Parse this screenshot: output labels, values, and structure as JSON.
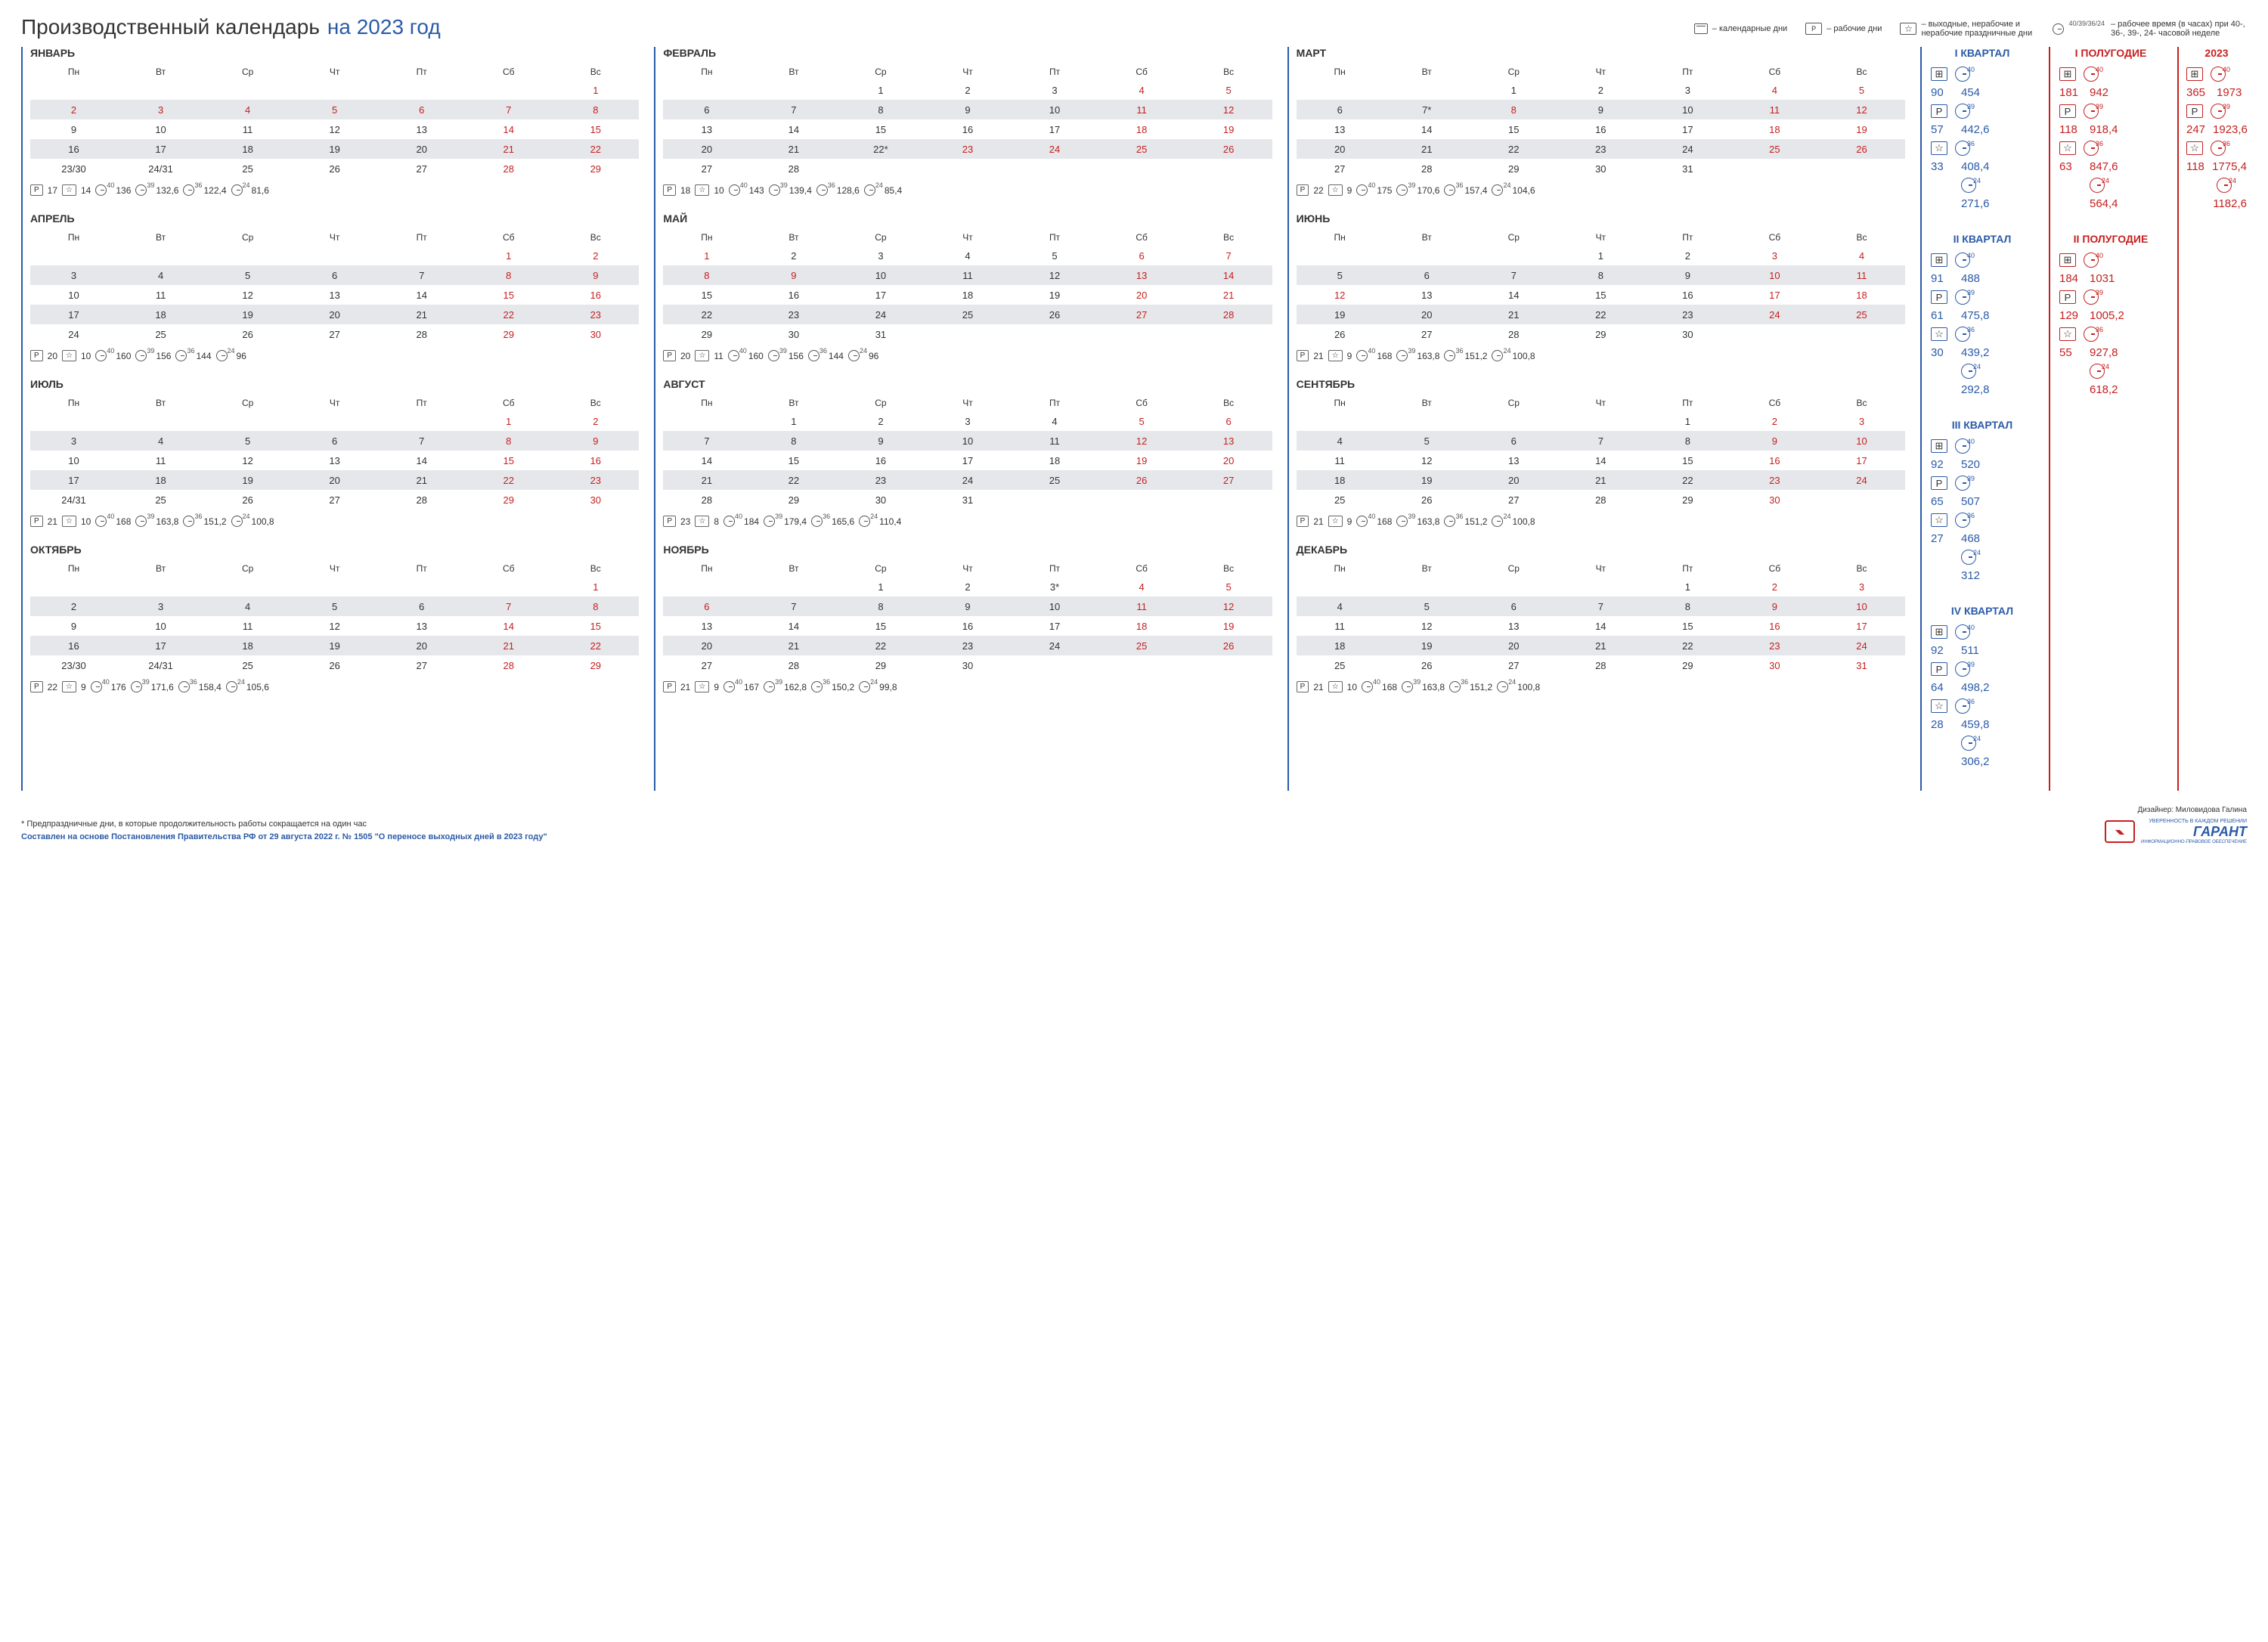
{
  "title": "Производственный календарь",
  "titleYear": "на 2023 год",
  "legend": {
    "cal": "– календарные дни",
    "work": "– рабочие дни",
    "off": "– выходные, нерабочие и нерабочие праздничные дни",
    "time": "– рабочее время (в часах) при 40-, 36-, 39-, 24- часовой неделе",
    "timeLabel": "40/39/36/24"
  },
  "weekdays": [
    "Пн",
    "Вт",
    "Ср",
    "Чт",
    "Пт",
    "Сб",
    "Вс"
  ],
  "months": [
    {
      "name": "ЯНВАРЬ",
      "rows": [
        [
          "",
          "",
          "",
          "",
          "",
          "",
          "1"
        ],
        [
          "2",
          "3",
          "4",
          "5",
          "6",
          "7",
          "8"
        ],
        [
          "9",
          "10",
          "11",
          "12",
          "13",
          "14",
          "15"
        ],
        [
          "16",
          "17",
          "18",
          "19",
          "20",
          "21",
          "22"
        ],
        [
          "23/30",
          "24/31",
          "25",
          "26",
          "27",
          "28",
          "29"
        ]
      ],
      "red": [
        [
          0,
          0,
          0,
          0,
          0,
          0,
          1
        ],
        [
          1,
          1,
          1,
          1,
          1,
          1,
          1
        ],
        [
          0,
          0,
          0,
          0,
          0,
          1,
          1
        ],
        [
          0,
          0,
          0,
          0,
          0,
          1,
          1
        ],
        [
          0,
          0,
          0,
          0,
          0,
          1,
          1
        ]
      ],
      "p": "17",
      "s": "14",
      "h": [
        "136",
        "132,6",
        "122,4",
        "81,6"
      ]
    },
    {
      "name": "ФЕВРАЛЬ",
      "rows": [
        [
          "",
          "",
          "1",
          "2",
          "3",
          "4",
          "5"
        ],
        [
          "6",
          "7",
          "8",
          "9",
          "10",
          "11",
          "12"
        ],
        [
          "13",
          "14",
          "15",
          "16",
          "17",
          "18",
          "19"
        ],
        [
          "20",
          "21",
          "22*",
          "23",
          "24",
          "25",
          "26"
        ],
        [
          "27",
          "28",
          "",
          "",
          "",
          "",
          ""
        ]
      ],
      "red": [
        [
          0,
          0,
          0,
          0,
          0,
          1,
          1
        ],
        [
          0,
          0,
          0,
          0,
          0,
          1,
          1
        ],
        [
          0,
          0,
          0,
          0,
          0,
          1,
          1
        ],
        [
          0,
          0,
          0,
          1,
          1,
          1,
          1
        ],
        [
          0,
          0,
          0,
          0,
          0,
          0,
          0
        ]
      ],
      "p": "18",
      "s": "10",
      "h": [
        "143",
        "139,4",
        "128,6",
        "85,4"
      ]
    },
    {
      "name": "МАРТ",
      "rows": [
        [
          "",
          "",
          "1",
          "2",
          "3",
          "4",
          "5"
        ],
        [
          "6",
          "7*",
          "8",
          "9",
          "10",
          "11",
          "12"
        ],
        [
          "13",
          "14",
          "15",
          "16",
          "17",
          "18",
          "19"
        ],
        [
          "20",
          "21",
          "22",
          "23",
          "24",
          "25",
          "26"
        ],
        [
          "27",
          "28",
          "29",
          "30",
          "31",
          "",
          ""
        ]
      ],
      "red": [
        [
          0,
          0,
          0,
          0,
          0,
          1,
          1
        ],
        [
          0,
          0,
          1,
          0,
          0,
          1,
          1
        ],
        [
          0,
          0,
          0,
          0,
          0,
          1,
          1
        ],
        [
          0,
          0,
          0,
          0,
          0,
          1,
          1
        ],
        [
          0,
          0,
          0,
          0,
          0,
          0,
          0
        ]
      ],
      "p": "22",
      "s": "9",
      "h": [
        "175",
        "170,6",
        "157,4",
        "104,6"
      ]
    },
    {
      "name": "АПРЕЛЬ",
      "rows": [
        [
          "",
          "",
          "",
          "",
          "",
          "1",
          "2"
        ],
        [
          "3",
          "4",
          "5",
          "6",
          "7",
          "8",
          "9"
        ],
        [
          "10",
          "11",
          "12",
          "13",
          "14",
          "15",
          "16"
        ],
        [
          "17",
          "18",
          "19",
          "20",
          "21",
          "22",
          "23"
        ],
        [
          "24",
          "25",
          "26",
          "27",
          "28",
          "29",
          "30"
        ]
      ],
      "red": [
        [
          0,
          0,
          0,
          0,
          0,
          1,
          1
        ],
        [
          0,
          0,
          0,
          0,
          0,
          1,
          1
        ],
        [
          0,
          0,
          0,
          0,
          0,
          1,
          1
        ],
        [
          0,
          0,
          0,
          0,
          0,
          1,
          1
        ],
        [
          0,
          0,
          0,
          0,
          0,
          1,
          1
        ]
      ],
      "p": "20",
      "s": "10",
      "h": [
        "160",
        "156",
        "144",
        "96"
      ]
    },
    {
      "name": "МАЙ",
      "rows": [
        [
          "1",
          "2",
          "3",
          "4",
          "5",
          "6",
          "7"
        ],
        [
          "8",
          "9",
          "10",
          "11",
          "12",
          "13",
          "14"
        ],
        [
          "15",
          "16",
          "17",
          "18",
          "19",
          "20",
          "21"
        ],
        [
          "22",
          "23",
          "24",
          "25",
          "26",
          "27",
          "28"
        ],
        [
          "29",
          "30",
          "31",
          "",
          "",
          "",
          ""
        ]
      ],
      "red": [
        [
          1,
          0,
          0,
          0,
          0,
          1,
          1
        ],
        [
          1,
          1,
          0,
          0,
          0,
          1,
          1
        ],
        [
          0,
          0,
          0,
          0,
          0,
          1,
          1
        ],
        [
          0,
          0,
          0,
          0,
          0,
          1,
          1
        ],
        [
          0,
          0,
          0,
          0,
          0,
          0,
          0
        ]
      ],
      "p": "20",
      "s": "11",
      "h": [
        "160",
        "156",
        "144",
        "96"
      ]
    },
    {
      "name": "ИЮНЬ",
      "rows": [
        [
          "",
          "",
          "",
          "1",
          "2",
          "3",
          "4"
        ],
        [
          "5",
          "6",
          "7",
          "8",
          "9",
          "10",
          "11"
        ],
        [
          "12",
          "13",
          "14",
          "15",
          "16",
          "17",
          "18"
        ],
        [
          "19",
          "20",
          "21",
          "22",
          "23",
          "24",
          "25"
        ],
        [
          "26",
          "27",
          "28",
          "29",
          "30",
          "",
          ""
        ]
      ],
      "red": [
        [
          0,
          0,
          0,
          0,
          0,
          1,
          1
        ],
        [
          0,
          0,
          0,
          0,
          0,
          1,
          1
        ],
        [
          1,
          0,
          0,
          0,
          0,
          1,
          1
        ],
        [
          0,
          0,
          0,
          0,
          0,
          1,
          1
        ],
        [
          0,
          0,
          0,
          0,
          0,
          0,
          0
        ]
      ],
      "p": "21",
      "s": "9",
      "h": [
        "168",
        "163,8",
        "151,2",
        "100,8"
      ]
    },
    {
      "name": "ИЮЛЬ",
      "rows": [
        [
          "",
          "",
          "",
          "",
          "",
          "1",
          "2"
        ],
        [
          "3",
          "4",
          "5",
          "6",
          "7",
          "8",
          "9"
        ],
        [
          "10",
          "11",
          "12",
          "13",
          "14",
          "15",
          "16"
        ],
        [
          "17",
          "18",
          "19",
          "20",
          "21",
          "22",
          "23"
        ],
        [
          "24/31",
          "25",
          "26",
          "27",
          "28",
          "29",
          "30"
        ]
      ],
      "red": [
        [
          0,
          0,
          0,
          0,
          0,
          1,
          1
        ],
        [
          0,
          0,
          0,
          0,
          0,
          1,
          1
        ],
        [
          0,
          0,
          0,
          0,
          0,
          1,
          1
        ],
        [
          0,
          0,
          0,
          0,
          0,
          1,
          1
        ],
        [
          0,
          0,
          0,
          0,
          0,
          1,
          1
        ]
      ],
      "p": "21",
      "s": "10",
      "h": [
        "168",
        "163,8",
        "151,2",
        "100,8"
      ]
    },
    {
      "name": "АВГУСТ",
      "rows": [
        [
          "",
          "1",
          "2",
          "3",
          "4",
          "5",
          "6"
        ],
        [
          "7",
          "8",
          "9",
          "10",
          "11",
          "12",
          "13"
        ],
        [
          "14",
          "15",
          "16",
          "17",
          "18",
          "19",
          "20"
        ],
        [
          "21",
          "22",
          "23",
          "24",
          "25",
          "26",
          "27"
        ],
        [
          "28",
          "29",
          "30",
          "31",
          "",
          "",
          ""
        ]
      ],
      "red": [
        [
          0,
          0,
          0,
          0,
          0,
          1,
          1
        ],
        [
          0,
          0,
          0,
          0,
          0,
          1,
          1
        ],
        [
          0,
          0,
          0,
          0,
          0,
          1,
          1
        ],
        [
          0,
          0,
          0,
          0,
          0,
          1,
          1
        ],
        [
          0,
          0,
          0,
          0,
          0,
          0,
          0
        ]
      ],
      "p": "23",
      "s": "8",
      "h": [
        "184",
        "179,4",
        "165,6",
        "110,4"
      ]
    },
    {
      "name": "СЕНТЯБРЬ",
      "rows": [
        [
          "",
          "",
          "",
          "",
          "1",
          "2",
          "3"
        ],
        [
          "4",
          "5",
          "6",
          "7",
          "8",
          "9",
          "10"
        ],
        [
          "11",
          "12",
          "13",
          "14",
          "15",
          "16",
          "17"
        ],
        [
          "18",
          "19",
          "20",
          "21",
          "22",
          "23",
          "24"
        ],
        [
          "25",
          "26",
          "27",
          "28",
          "29",
          "30",
          ""
        ]
      ],
      "red": [
        [
          0,
          0,
          0,
          0,
          0,
          1,
          1
        ],
        [
          0,
          0,
          0,
          0,
          0,
          1,
          1
        ],
        [
          0,
          0,
          0,
          0,
          0,
          1,
          1
        ],
        [
          0,
          0,
          0,
          0,
          0,
          1,
          1
        ],
        [
          0,
          0,
          0,
          0,
          0,
          1,
          0
        ]
      ],
      "p": "21",
      "s": "9",
      "h": [
        "168",
        "163,8",
        "151,2",
        "100,8"
      ]
    },
    {
      "name": "ОКТЯБРЬ",
      "rows": [
        [
          "",
          "",
          "",
          "",
          "",
          "",
          "1"
        ],
        [
          "2",
          "3",
          "4",
          "5",
          "6",
          "7",
          "8"
        ],
        [
          "9",
          "10",
          "11",
          "12",
          "13",
          "14",
          "15"
        ],
        [
          "16",
          "17",
          "18",
          "19",
          "20",
          "21",
          "22"
        ],
        [
          "23/30",
          "24/31",
          "25",
          "26",
          "27",
          "28",
          "29"
        ]
      ],
      "red": [
        [
          0,
          0,
          0,
          0,
          0,
          0,
          1
        ],
        [
          0,
          0,
          0,
          0,
          0,
          1,
          1
        ],
        [
          0,
          0,
          0,
          0,
          0,
          1,
          1
        ],
        [
          0,
          0,
          0,
          0,
          0,
          1,
          1
        ],
        [
          0,
          0,
          0,
          0,
          0,
          1,
          1
        ]
      ],
      "p": "22",
      "s": "9",
      "h": [
        "176",
        "171,6",
        "158,4",
        "105,6"
      ]
    },
    {
      "name": "НОЯБРЬ",
      "rows": [
        [
          "",
          "",
          "1",
          "2",
          "3*",
          "4",
          "5"
        ],
        [
          "6",
          "7",
          "8",
          "9",
          "10",
          "11",
          "12"
        ],
        [
          "13",
          "14",
          "15",
          "16",
          "17",
          "18",
          "19"
        ],
        [
          "20",
          "21",
          "22",
          "23",
          "24",
          "25",
          "26"
        ],
        [
          "27",
          "28",
          "29",
          "30",
          "",
          "",
          ""
        ]
      ],
      "red": [
        [
          0,
          0,
          0,
          0,
          0,
          1,
          1
        ],
        [
          1,
          0,
          0,
          0,
          0,
          1,
          1
        ],
        [
          0,
          0,
          0,
          0,
          0,
          1,
          1
        ],
        [
          0,
          0,
          0,
          0,
          0,
          1,
          1
        ],
        [
          0,
          0,
          0,
          0,
          0,
          0,
          0
        ]
      ],
      "p": "21",
      "s": "9",
      "h": [
        "167",
        "162,8",
        "150,2",
        "99,8"
      ]
    },
    {
      "name": "ДЕКАБРЬ",
      "rows": [
        [
          "",
          "",
          "",
          "",
          "1",
          "2",
          "3"
        ],
        [
          "4",
          "5",
          "6",
          "7",
          "8",
          "9",
          "10"
        ],
        [
          "11",
          "12",
          "13",
          "14",
          "15",
          "16",
          "17"
        ],
        [
          "18",
          "19",
          "20",
          "21",
          "22",
          "23",
          "24"
        ],
        [
          "25",
          "26",
          "27",
          "28",
          "29",
          "30",
          "31"
        ]
      ],
      "red": [
        [
          0,
          0,
          0,
          0,
          0,
          1,
          1
        ],
        [
          0,
          0,
          0,
          0,
          0,
          1,
          1
        ],
        [
          0,
          0,
          0,
          0,
          0,
          1,
          1
        ],
        [
          0,
          0,
          0,
          0,
          0,
          1,
          1
        ],
        [
          0,
          0,
          0,
          0,
          0,
          1,
          1
        ]
      ],
      "p": "21",
      "s": "10",
      "h": [
        "168",
        "163,8",
        "151,2",
        "100,8"
      ]
    }
  ],
  "quarters": [
    {
      "title": "I КВАРТАЛ",
      "cal": "90",
      "p": "57",
      "s": "33",
      "h": [
        "454",
        "442,6",
        "408,4",
        "271,6"
      ]
    },
    {
      "title": "II КВАРТАЛ",
      "cal": "91",
      "p": "61",
      "s": "30",
      "h": [
        "488",
        "475,8",
        "439,2",
        "292,8"
      ]
    },
    {
      "title": "III КВАРТАЛ",
      "cal": "92",
      "p": "65",
      "s": "27",
      "h": [
        "520",
        "507",
        "468",
        "312"
      ]
    },
    {
      "title": "IV КВАРТАЛ",
      "cal": "92",
      "p": "64",
      "s": "28",
      "h": [
        "511",
        "498,2",
        "459,8",
        "306,2"
      ]
    }
  ],
  "halves": [
    {
      "title": "I ПОЛУГОДИЕ",
      "cal": "181",
      "p": "118",
      "s": "63",
      "h": [
        "942",
        "918,4",
        "847,6",
        "564,4"
      ]
    },
    {
      "title": "II ПОЛУГОДИЕ",
      "cal": "184",
      "p": "129",
      "s": "55",
      "h": [
        "1031",
        "1005,2",
        "927,8",
        "618,2"
      ]
    }
  ],
  "year": {
    "title": "2023",
    "cal": "365",
    "p": "247",
    "s": "118",
    "h": [
      "1973",
      "1923,6",
      "1775,4",
      "1182,6"
    ]
  },
  "hours_sup": [
    "40",
    "39",
    "36",
    "24"
  ],
  "footnote": "* Предпраздничные дни, в которые продолжительность работы сокращается на один час",
  "source": "Составлен на основе Постановления Правительства РФ от 29 августа 2022 г. № 1505 \"О переносе выходных дней в 2023 году\"",
  "designer": "Дизайнер: Миловидова Галина",
  "logoTop": "УВЕРЕННОСТЬ В КАЖДОМ РЕШЕНИИ",
  "logo": "ГАРАНТ",
  "logoSub": "ИНФОРМАЦИОННО-ПРАВОВОЕ ОБЕСПЕЧЕНИЕ"
}
